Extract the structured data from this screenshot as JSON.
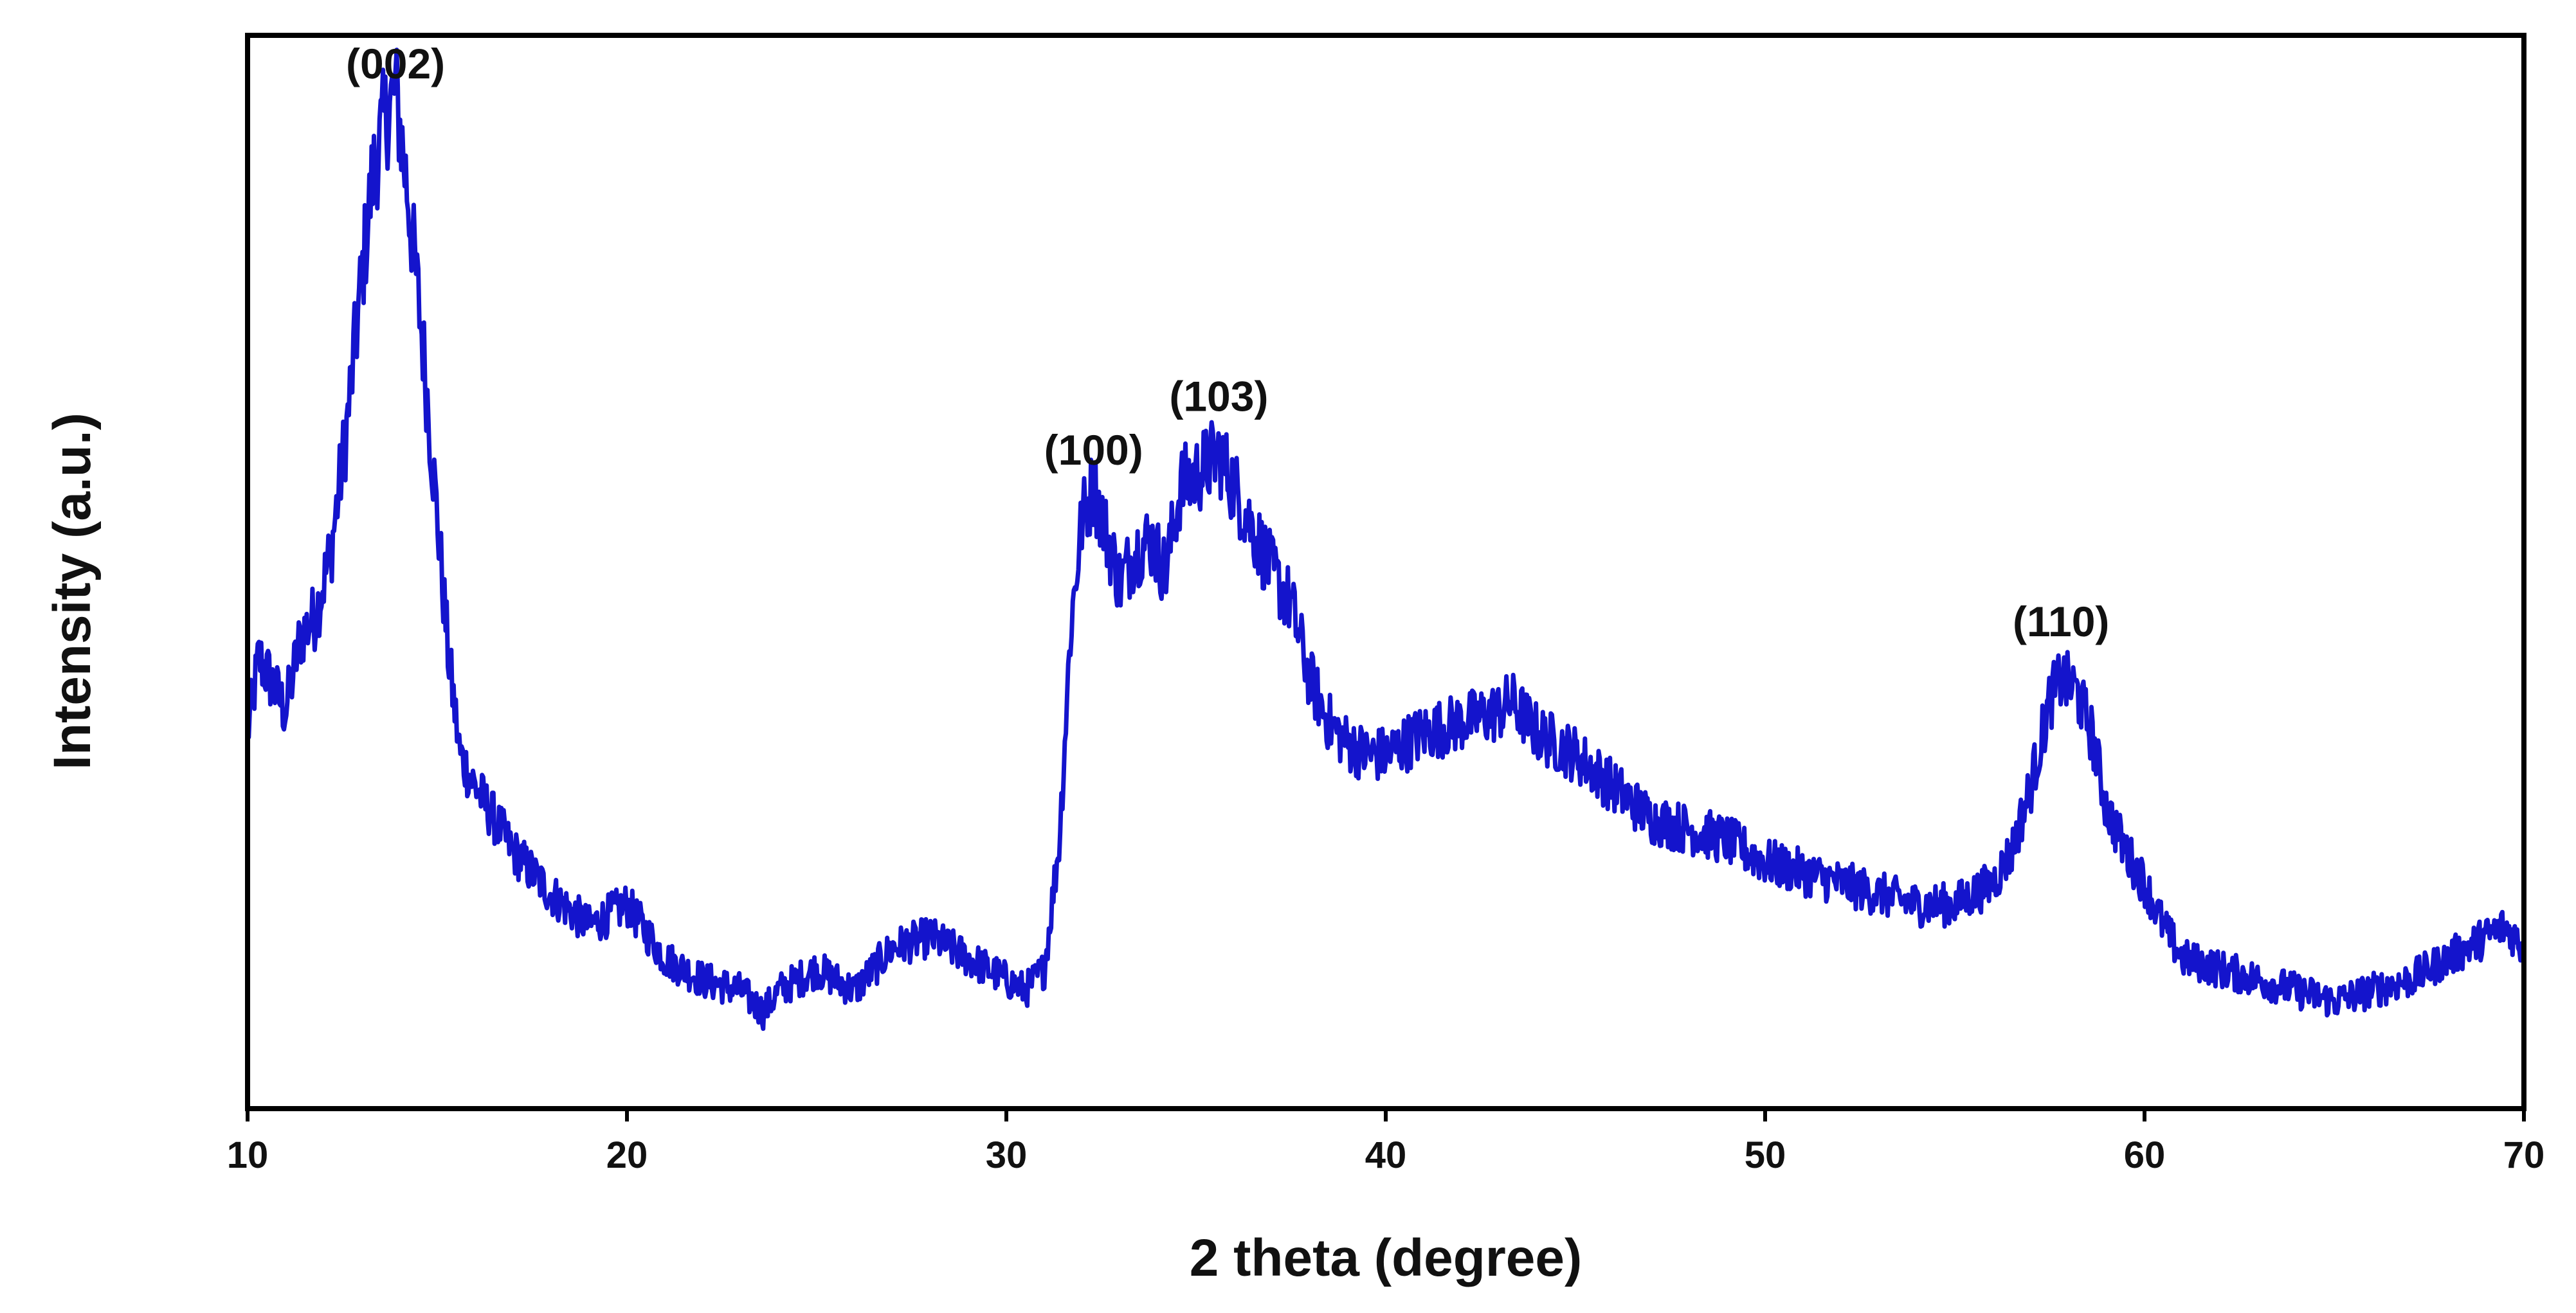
{
  "chart_data": {
    "type": "line",
    "title": "",
    "xlabel": "2 theta (degree)",
    "ylabel": "Intensity (a.u.)",
    "xlim": [
      10,
      70
    ],
    "ylim": [
      0,
      100
    ],
    "grid": false,
    "legend": "none",
    "y_tick_labels": false,
    "colors": {
      "series": "#1414cc",
      "axes": "#000000",
      "text": "#111111"
    },
    "x_ticks": [
      {
        "value": 10,
        "label": "10"
      },
      {
        "value": 20,
        "label": "20"
      },
      {
        "value": 30,
        "label": "30"
      },
      {
        "value": 40,
        "label": "40"
      },
      {
        "value": 50,
        "label": "50"
      },
      {
        "value": 60,
        "label": "60"
      },
      {
        "value": 70,
        "label": "70"
      }
    ],
    "annotations": [
      {
        "label": "(002)",
        "x": 13.9,
        "y": 96
      },
      {
        "label": "(100)",
        "x": 32.3,
        "y": 60
      },
      {
        "label": "(103)",
        "x": 35.6,
        "y": 65
      },
      {
        "label": "(110)",
        "x": 57.8,
        "y": 44
      }
    ],
    "series": [
      {
        "color": "#1414cc",
        "x": [
          10.0,
          10.3,
          10.6,
          11.0,
          11.4,
          11.8,
          12.2,
          12.6,
          13.0,
          13.3,
          13.6,
          13.9,
          14.2,
          14.6,
          15.0,
          15.3,
          15.6,
          16.0,
          16.5,
          17.0,
          18.0,
          19.0,
          20.0,
          21.0,
          22.0,
          23.0,
          23.6,
          24.0,
          25.0,
          26.0,
          27.0,
          28.0,
          29.0,
          30.0,
          30.5,
          31.0,
          31.4,
          31.7,
          32.0,
          32.3,
          32.6,
          33.0,
          33.4,
          33.8,
          34.2,
          34.6,
          35.0,
          35.3,
          35.6,
          36.0,
          36.5,
          37.0,
          37.5,
          38.0,
          38.5,
          39.0,
          39.5,
          40.0,
          41.0,
          42.0,
          43.0,
          43.3,
          44.0,
          45.0,
          46.0,
          47.0,
          48.0,
          49.0,
          50.0,
          51.0,
          52.0,
          53.0,
          54.0,
          55.0,
          56.0,
          56.5,
          57.0,
          57.5,
          57.8,
          58.2,
          58.6,
          59.0,
          59.5,
          60.0,
          60.5,
          61.0,
          62.0,
          63.0,
          64.0,
          65.0,
          66.0,
          67.0,
          68.0,
          69.0,
          69.5,
          70.0
        ],
        "y": [
          35,
          42,
          40,
          37,
          44,
          46,
          52,
          63,
          77,
          87,
          92,
          95,
          86,
          72,
          55,
          42,
          33,
          30,
          27,
          24,
          20,
          17,
          19,
          14,
          12,
          11,
          9,
          11,
          13,
          11,
          15,
          16,
          14,
          12,
          11,
          13,
          25,
          45,
          55,
          58,
          54,
          49,
          52,
          53,
          50,
          58,
          59,
          60,
          61,
          58,
          54,
          50,
          47,
          40,
          36,
          34,
          33,
          33,
          35,
          36,
          37,
          38,
          35,
          33,
          30,
          27,
          26,
          25,
          23,
          22,
          21,
          20,
          19,
          19,
          21,
          24,
          30,
          38,
          40,
          39,
          35,
          28,
          24,
          21,
          17,
          14,
          13,
          12,
          11,
          10,
          11,
          12,
          14,
          16,
          17,
          15
        ]
      }
    ]
  }
}
